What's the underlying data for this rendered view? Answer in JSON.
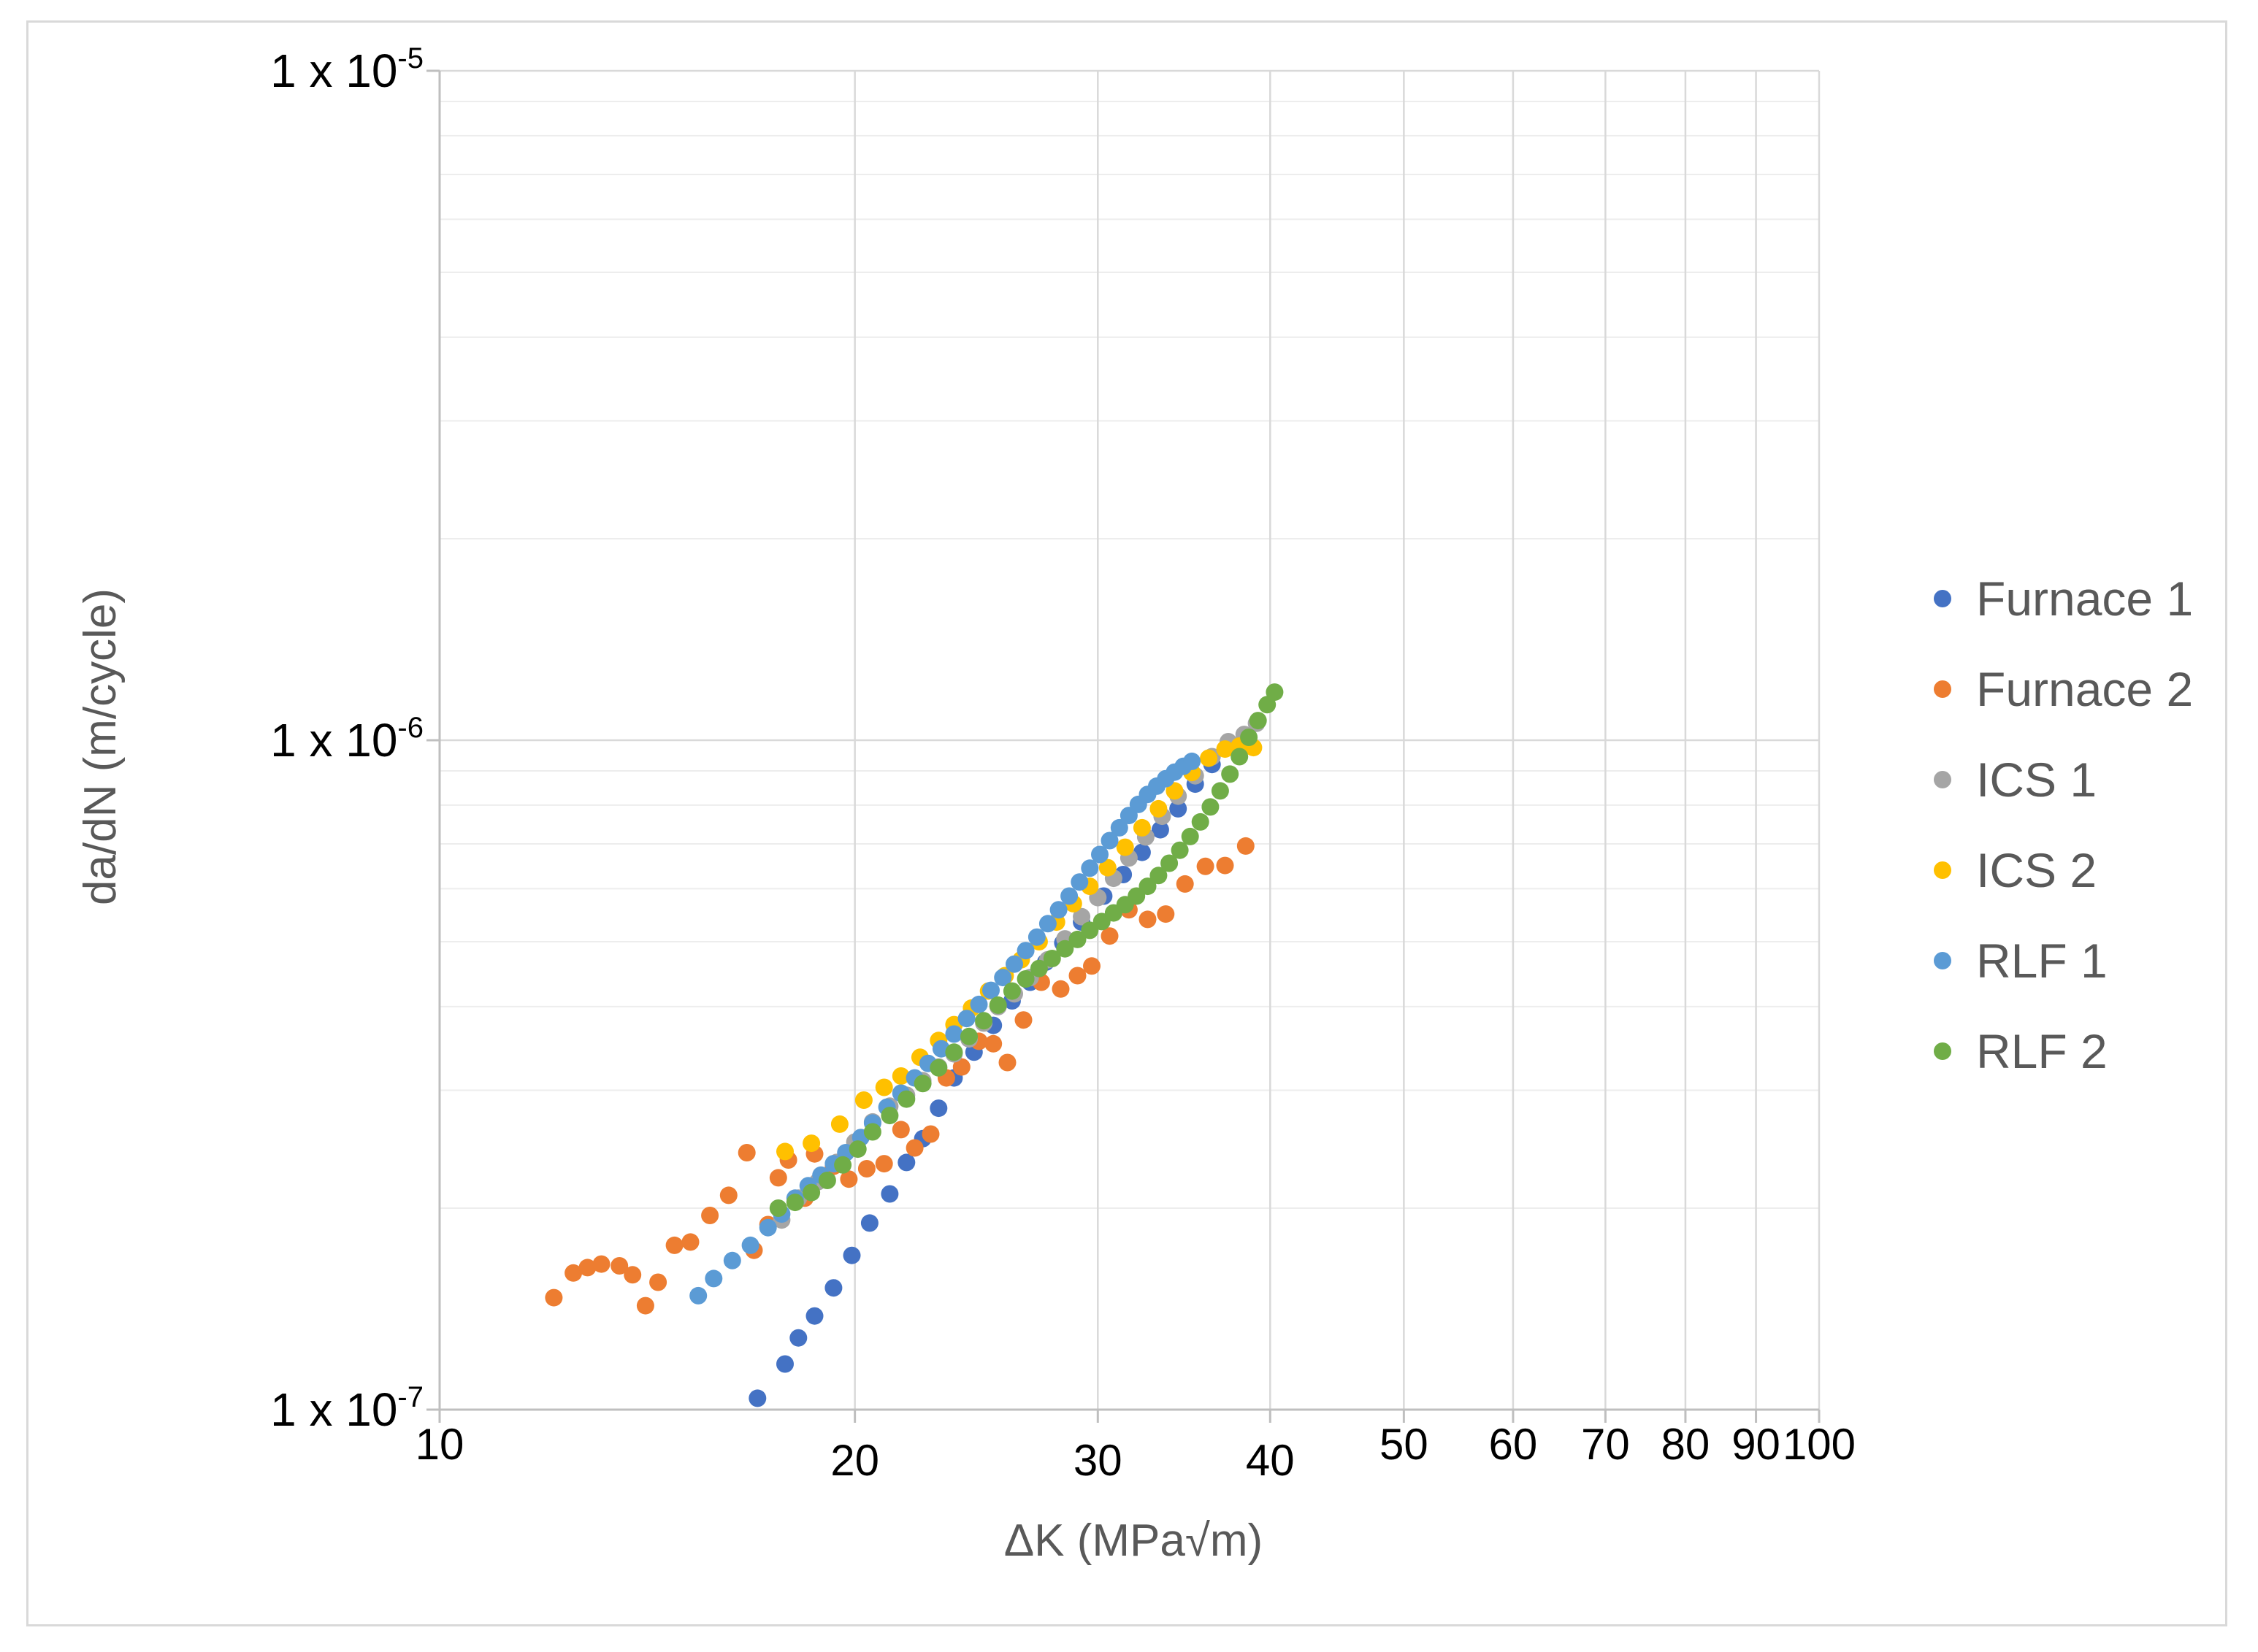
{
  "chart_data": {
    "type": "scatter",
    "title": "",
    "xlabel": "ΔK (MPa√m)",
    "ylabel": "da/dN (m/cycle)",
    "x_scale": "log",
    "y_scale": "log",
    "xlim": [
      10,
      100
    ],
    "ylim": [
      1e-07,
      1e-05
    ],
    "x_ticks": [
      10,
      20,
      30,
      40,
      50,
      60,
      70,
      80,
      90,
      100
    ],
    "x_tick_labels": [
      "10",
      "20",
      "30",
      "40",
      "50",
      "60",
      "70",
      "80",
      "90",
      "100"
    ],
    "y_ticks": [
      {
        "value": 1e-05,
        "base": "1 x 10",
        "exp": "-5"
      },
      {
        "value": 1e-06,
        "base": "1 x 10",
        "exp": "-6"
      },
      {
        "value": 1e-07,
        "base": "1 x 10",
        "exp": "-7"
      }
    ],
    "grid": true,
    "legend_position": "right",
    "series": [
      {
        "name": "Furnace 1",
        "color": "#4472c4",
        "points": [
          [
            17.0,
            1.04e-07
          ],
          [
            17.8,
            1.17e-07
          ],
          [
            18.2,
            1.28e-07
          ],
          [
            18.7,
            1.38e-07
          ],
          [
            19.3,
            1.52e-07
          ],
          [
            19.9,
            1.7e-07
          ],
          [
            20.5,
            1.9e-07
          ],
          [
            21.2,
            2.1e-07
          ],
          [
            21.8,
            2.34e-07
          ],
          [
            22.4,
            2.54e-07
          ],
          [
            23.0,
            2.82e-07
          ],
          [
            23.6,
            3.13e-07
          ],
          [
            24.4,
            3.42e-07
          ],
          [
            25.2,
            3.75e-07
          ],
          [
            26.0,
            4.08e-07
          ],
          [
            26.8,
            4.35e-07
          ],
          [
            27.5,
            4.66e-07
          ],
          [
            28.3,
            4.98e-07
          ],
          [
            29.2,
            5.35e-07
          ],
          [
            30.3,
            5.85e-07
          ],
          [
            31.3,
            6.3e-07
          ],
          [
            32.3,
            6.8e-07
          ],
          [
            33.3,
            7.35e-07
          ],
          [
            34.3,
            7.9e-07
          ],
          [
            35.3,
            8.6e-07
          ],
          [
            36.3,
            9.2e-07
          ],
          [
            37.3,
            9.8e-07
          ]
        ]
      },
      {
        "name": "Furnace 2",
        "color": "#ed7d31",
        "points": [
          [
            12.1,
            1.47e-07
          ],
          [
            12.5,
            1.6e-07
          ],
          [
            12.8,
            1.63e-07
          ],
          [
            13.1,
            1.65e-07
          ],
          [
            13.5,
            1.64e-07
          ],
          [
            13.8,
            1.59e-07
          ],
          [
            14.1,
            1.43e-07
          ],
          [
            14.4,
            1.55e-07
          ],
          [
            14.8,
            1.76e-07
          ],
          [
            15.2,
            1.78e-07
          ],
          [
            15.7,
            1.95e-07
          ],
          [
            16.2,
            2.09e-07
          ],
          [
            16.7,
            2.42e-07
          ],
          [
            16.9,
            1.73e-07
          ],
          [
            17.3,
            1.89e-07
          ],
          [
            17.6,
            2.22e-07
          ],
          [
            17.9,
            2.36e-07
          ],
          [
            18.4,
            2.07e-07
          ],
          [
            18.7,
            2.41e-07
          ],
          [
            19.3,
            2.31e-07
          ],
          [
            19.8,
            2.21e-07
          ],
          [
            20.4,
            2.29e-07
          ],
          [
            21.0,
            2.33e-07
          ],
          [
            21.6,
            2.62e-07
          ],
          [
            22.1,
            2.46e-07
          ],
          [
            22.7,
            2.58e-07
          ],
          [
            23.3,
            3.13e-07
          ],
          [
            23.9,
            3.25e-07
          ],
          [
            24.6,
            3.55e-07
          ],
          [
            25.2,
            3.52e-07
          ],
          [
            25.8,
            3.3e-07
          ],
          [
            26.5,
            3.82e-07
          ],
          [
            27.3,
            4.35e-07
          ],
          [
            28.2,
            4.25e-07
          ],
          [
            29.0,
            4.45e-07
          ],
          [
            29.7,
            4.6e-07
          ],
          [
            30.6,
            5.1e-07
          ],
          [
            31.6,
            5.58e-07
          ],
          [
            32.6,
            5.4e-07
          ],
          [
            33.6,
            5.5e-07
          ],
          [
            34.7,
            6.1e-07
          ],
          [
            35.9,
            6.48e-07
          ],
          [
            37.1,
            6.5e-07
          ],
          [
            38.4,
            6.95e-07
          ]
        ]
      },
      {
        "name": "ICS 1",
        "color": "#a5a5a5",
        "points": [
          [
            17.7,
            1.92e-07
          ],
          [
            18.2,
            2.07e-07
          ],
          [
            18.8,
            2.19e-07
          ],
          [
            19.4,
            2.34e-07
          ],
          [
            20.0,
            2.51e-07
          ],
          [
            20.6,
            2.69e-07
          ],
          [
            21.2,
            2.84e-07
          ],
          [
            21.8,
            2.95e-07
          ],
          [
            22.4,
            3.1e-07
          ],
          [
            23.0,
            3.25e-07
          ],
          [
            23.6,
            3.4e-07
          ],
          [
            24.2,
            3.58e-07
          ],
          [
            24.8,
            3.78e-07
          ],
          [
            25.4,
            4e-07
          ],
          [
            26.1,
            4.18e-07
          ],
          [
            26.8,
            4.42e-07
          ],
          [
            27.6,
            4.7e-07
          ],
          [
            28.4,
            5.05e-07
          ],
          [
            29.2,
            5.45e-07
          ],
          [
            30.0,
            5.82e-07
          ],
          [
            30.8,
            6.22e-07
          ],
          [
            31.6,
            6.67e-07
          ],
          [
            32.5,
            7.17e-07
          ],
          [
            33.4,
            7.7e-07
          ],
          [
            34.3,
            8.25e-07
          ],
          [
            35.3,
            8.85e-07
          ],
          [
            36.3,
            9.45e-07
          ],
          [
            37.3,
            9.95e-07
          ],
          [
            38.3,
            1.02e-06
          ],
          [
            39.1,
            1.06e-06
          ]
        ]
      },
      {
        "name": "ICS 2",
        "color": "#ffc000",
        "points": [
          [
            17.8,
            2.43e-07
          ],
          [
            18.6,
            2.5e-07
          ],
          [
            19.5,
            2.67e-07
          ],
          [
            20.3,
            2.9e-07
          ],
          [
            21.0,
            3.03e-07
          ],
          [
            21.6,
            3.15e-07
          ],
          [
            22.3,
            3.36e-07
          ],
          [
            23.0,
            3.56e-07
          ],
          [
            23.6,
            3.76e-07
          ],
          [
            24.3,
            3.98e-07
          ],
          [
            25.0,
            4.22e-07
          ],
          [
            25.7,
            4.45e-07
          ],
          [
            26.4,
            4.7e-07
          ],
          [
            27.2,
            5e-07
          ],
          [
            28.0,
            5.35e-07
          ],
          [
            28.8,
            5.7e-07
          ],
          [
            29.6,
            6.05e-07
          ],
          [
            30.5,
            6.45e-07
          ],
          [
            31.4,
            6.92e-07
          ],
          [
            32.3,
            7.4e-07
          ],
          [
            33.2,
            7.9e-07
          ],
          [
            34.1,
            8.4e-07
          ],
          [
            35.1,
            8.95e-07
          ],
          [
            36.1,
            9.4e-07
          ],
          [
            37.1,
            9.7e-07
          ],
          [
            38.0,
            9.8e-07
          ],
          [
            38.9,
            9.75e-07
          ]
        ]
      },
      {
        "name": "RLF 1",
        "color": "#5b9bd5",
        "points": [
          [
            15.4,
            1.48e-07
          ],
          [
            15.8,
            1.57e-07
          ],
          [
            16.3,
            1.67e-07
          ],
          [
            16.8,
            1.76e-07
          ],
          [
            17.3,
            1.87e-07
          ],
          [
            17.7,
            1.96e-07
          ],
          [
            18.1,
            2.07e-07
          ],
          [
            18.5,
            2.16e-07
          ],
          [
            18.9,
            2.24e-07
          ],
          [
            19.3,
            2.33e-07
          ],
          [
            19.7,
            2.42e-07
          ],
          [
            20.2,
            2.55e-07
          ],
          [
            20.6,
            2.68e-07
          ],
          [
            21.1,
            2.83e-07
          ],
          [
            21.6,
            2.97e-07
          ],
          [
            22.1,
            3.13e-07
          ],
          [
            22.6,
            3.29e-07
          ],
          [
            23.1,
            3.46e-07
          ],
          [
            23.6,
            3.64e-07
          ],
          [
            24.1,
            3.84e-07
          ],
          [
            24.6,
            4.03e-07
          ],
          [
            25.1,
            4.23e-07
          ],
          [
            25.6,
            4.42e-07
          ],
          [
            26.1,
            4.63e-07
          ],
          [
            26.6,
            4.85e-07
          ],
          [
            27.1,
            5.08e-07
          ],
          [
            27.6,
            5.32e-07
          ],
          [
            28.1,
            5.58e-07
          ],
          [
            28.6,
            5.85e-07
          ],
          [
            29.1,
            6.14e-07
          ],
          [
            29.6,
            6.44e-07
          ],
          [
            30.1,
            6.75e-07
          ],
          [
            30.6,
            7.08e-07
          ],
          [
            31.1,
            7.4e-07
          ],
          [
            31.6,
            7.72e-07
          ],
          [
            32.1,
            8.02e-07
          ],
          [
            32.6,
            8.3e-07
          ],
          [
            33.1,
            8.54e-07
          ],
          [
            33.6,
            8.76e-07
          ],
          [
            34.1,
            8.96e-07
          ],
          [
            34.6,
            9.14e-07
          ],
          [
            35.1,
            9.3e-07
          ]
        ]
      },
      {
        "name": "RLF 2",
        "color": "#70ad47",
        "points": [
          [
            17.6,
            2e-07
          ],
          [
            18.1,
            2.04e-07
          ],
          [
            18.6,
            2.11e-07
          ],
          [
            19.1,
            2.2e-07
          ],
          [
            19.6,
            2.32e-07
          ],
          [
            20.1,
            2.45e-07
          ],
          [
            20.6,
            2.6e-07
          ],
          [
            21.2,
            2.75e-07
          ],
          [
            21.8,
            2.91e-07
          ],
          [
            22.4,
            3.07e-07
          ],
          [
            23.0,
            3.24e-07
          ],
          [
            23.6,
            3.42e-07
          ],
          [
            24.2,
            3.61e-07
          ],
          [
            24.8,
            3.81e-07
          ],
          [
            25.4,
            4.02e-07
          ],
          [
            26.0,
            4.22e-07
          ],
          [
            26.6,
            4.4e-07
          ],
          [
            27.2,
            4.56e-07
          ],
          [
            27.8,
            4.72e-07
          ],
          [
            28.4,
            4.88e-07
          ],
          [
            29.0,
            5.04e-07
          ],
          [
            29.6,
            5.2e-07
          ],
          [
            30.2,
            5.36e-07
          ],
          [
            30.8,
            5.52e-07
          ],
          [
            31.4,
            5.68e-07
          ],
          [
            32.0,
            5.85e-07
          ],
          [
            32.6,
            6.05e-07
          ],
          [
            33.2,
            6.28e-07
          ],
          [
            33.8,
            6.55e-07
          ],
          [
            34.4,
            6.85e-07
          ],
          [
            35.0,
            7.18e-07
          ],
          [
            35.6,
            7.55e-07
          ],
          [
            36.2,
            7.95e-07
          ],
          [
            36.8,
            8.4e-07
          ],
          [
            37.4,
            8.9e-07
          ],
          [
            38.0,
            9.45e-07
          ],
          [
            38.6,
            1.01e-06
          ],
          [
            39.2,
            1.07e-06
          ],
          [
            39.8,
            1.13e-06
          ],
          [
            40.3,
            1.18e-06
          ]
        ]
      }
    ]
  }
}
